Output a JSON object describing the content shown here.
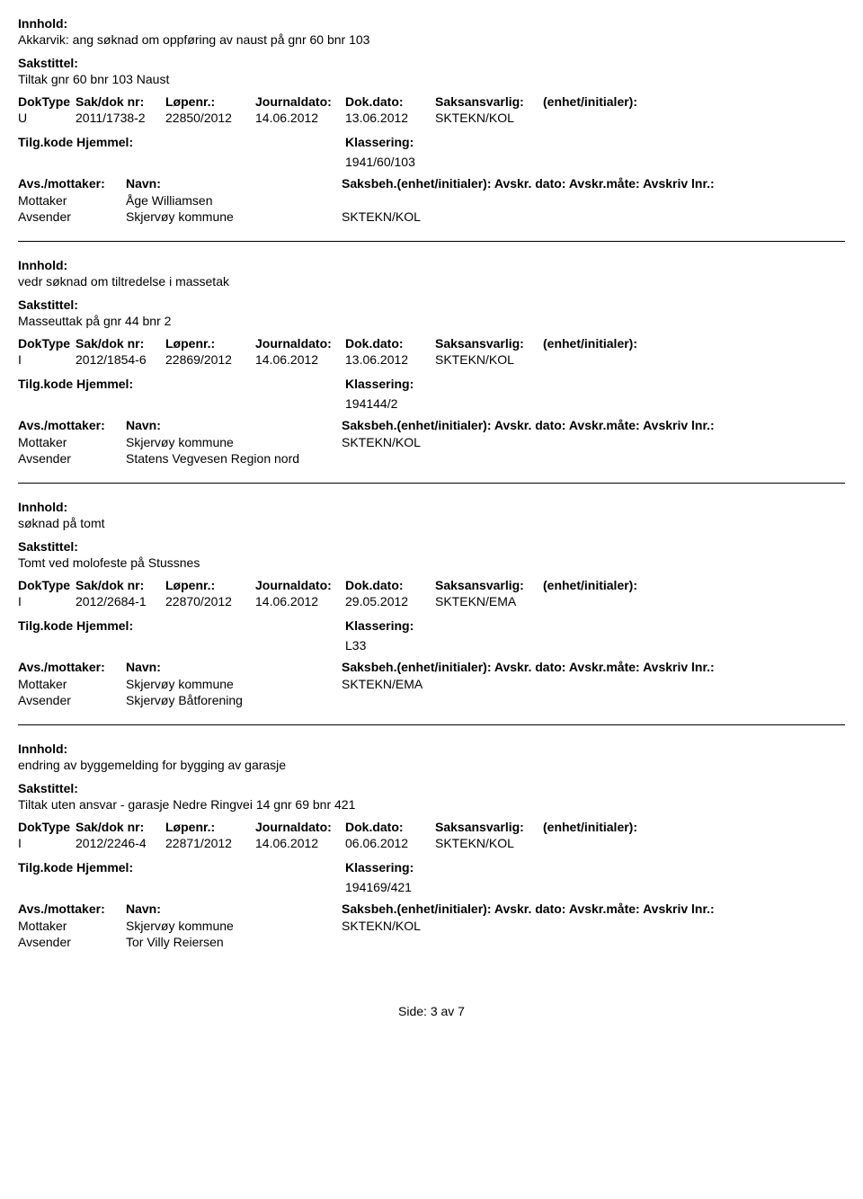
{
  "labels": {
    "innhold": "Innhold:",
    "sakstittel": "Sakstittel:",
    "dokType": "DokType",
    "sakDokNr": "Sak/dok nr:",
    "lopenr": "Løpenr.:",
    "journaldato": "Journaldato:",
    "dokDato": "Dok.dato:",
    "saksansvarlig": "Saksansvarlig:",
    "enhetInitialer": "(enhet/initialer):",
    "tilgKodeHjemmel": "Tilg.kode Hjemmel:",
    "klassering": "Klassering:",
    "avsMottaker": "Avs./mottaker:",
    "navn": "Navn:",
    "saksbehLine": "Saksbeh.(enhet/initialer): Avskr. dato: Avskr.måte: Avskriv lnr.:",
    "mottaker": "Mottaker",
    "avsender": "Avsender"
  },
  "records": [
    {
      "innhold": "Akkarvik: ang søknad om oppføring av naust på gnr 60 bnr 103",
      "sakstittel": "Tiltak gnr 60 bnr 103 Naust",
      "dokType": "U",
      "sakDokNr": "2011/1738-2",
      "lopenr": "22850/2012",
      "journaldato": "14.06.2012",
      "dokDato": "13.06.2012",
      "saksansvarlig": "SKTEKN/KOL",
      "klassering": "1941/60/103",
      "showPartyHeader": true,
      "mottakerNavn": "Åge Williamsen",
      "mottakerSaksbeh": "",
      "avsenderNavn": "Skjervøy kommune",
      "avsenderSaksbeh": "SKTEKN/KOL"
    },
    {
      "innhold": "vedr søknad om tiltredelse i massetak",
      "sakstittel": "Masseuttak på gnr  44 bnr  2",
      "dokType": "I",
      "sakDokNr": "2012/1854-6",
      "lopenr": "22869/2012",
      "journaldato": "14.06.2012",
      "dokDato": "13.06.2012",
      "saksansvarlig": "SKTEKN/KOL",
      "klassering": "194144/2",
      "showPartyHeader": true,
      "mottakerNavn": "Skjervøy kommune",
      "mottakerSaksbeh": "SKTEKN/KOL",
      "avsenderNavn": "Statens Vegvesen Region nord",
      "avsenderSaksbeh": ""
    },
    {
      "innhold": "søknad på tomt",
      "sakstittel": "Tomt ved molofeste på Stussnes",
      "dokType": "I",
      "sakDokNr": "2012/2684-1",
      "lopenr": "22870/2012",
      "journaldato": "14.06.2012",
      "dokDato": "29.05.2012",
      "saksansvarlig": "SKTEKN/EMA",
      "klassering": "L33",
      "showPartyHeader": true,
      "mottakerNavn": "Skjervøy kommune",
      "mottakerSaksbeh": "SKTEKN/EMA",
      "avsenderNavn": "Skjervøy Båtforening",
      "avsenderSaksbeh": ""
    },
    {
      "innhold": "endring av byggemelding for bygging av garasje",
      "sakstittel": "Tiltak uten ansvar - garasje  Nedre Ringvei 14  gnr 69 bnr 421",
      "dokType": "I",
      "sakDokNr": "2012/2246-4",
      "lopenr": "22871/2012",
      "journaldato": "14.06.2012",
      "dokDato": "06.06.2012",
      "saksansvarlig": "SKTEKN/KOL",
      "klassering": "194169/421",
      "showPartyHeader": true,
      "mottakerNavn": "Skjervøy kommune",
      "mottakerSaksbeh": "SKTEKN/KOL",
      "avsenderNavn": "Tor Villy Reiersen",
      "avsenderSaksbeh": ""
    }
  ],
  "footer": "Side: 3 av 7"
}
